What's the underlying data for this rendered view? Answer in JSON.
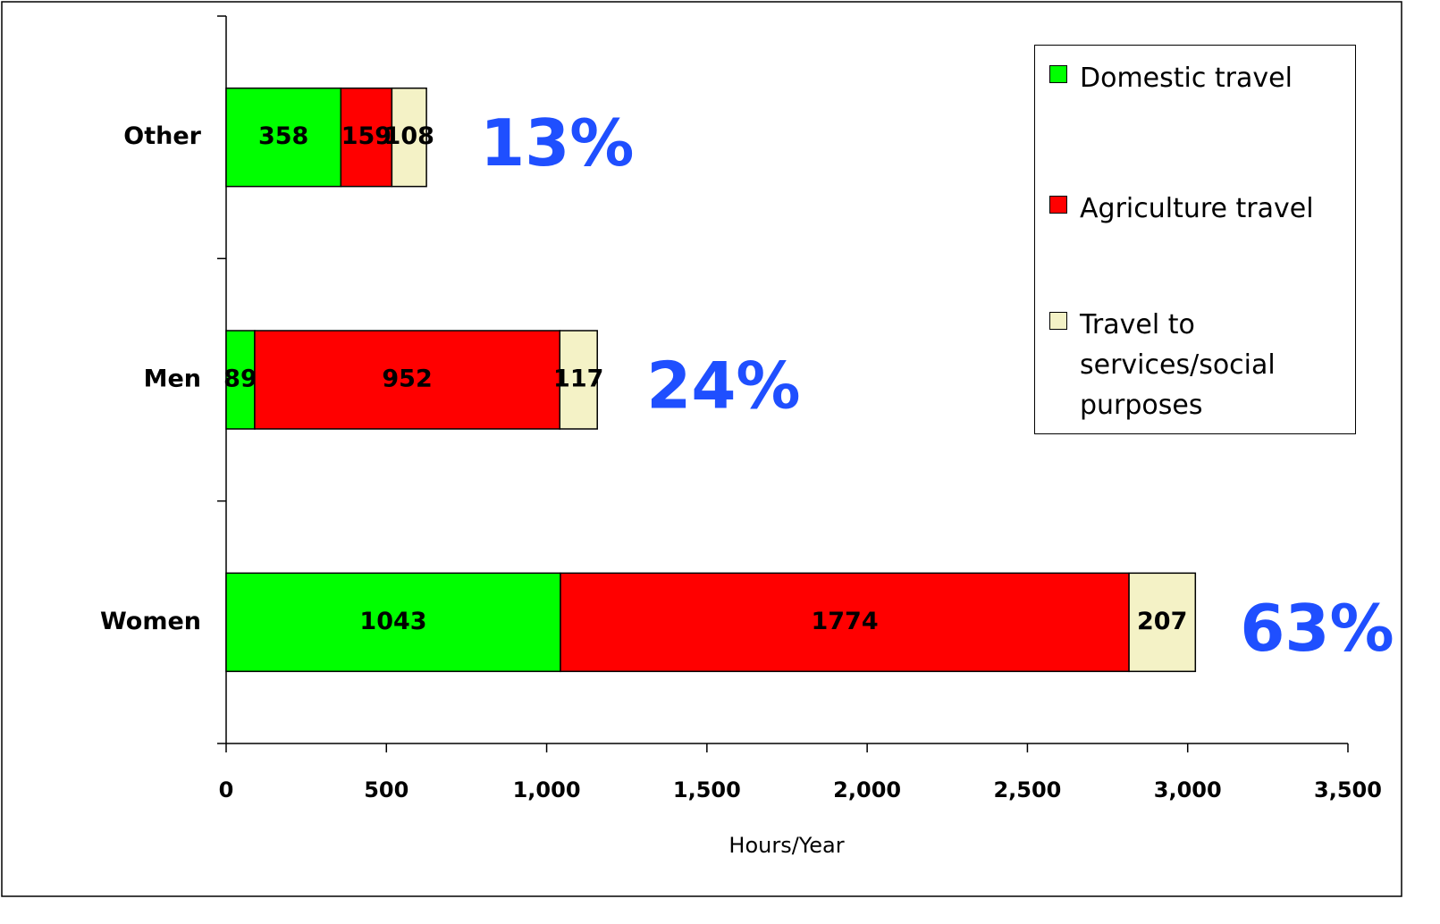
{
  "chart_data": {
    "type": "stacked-bar-horizontal",
    "categories": [
      "Other",
      "Men",
      "Women"
    ],
    "series": [
      {
        "name": "Domestic travel",
        "color": "#00ff00",
        "values": [
          358,
          89,
          1043
        ]
      },
      {
        "name": "Agriculture travel",
        "color": "#ff0000",
        "values": [
          159,
          952,
          1774
        ]
      },
      {
        "name": "Travel to services/social purposes",
        "color": "#f4f2c6",
        "values": [
          108,
          117,
          207
        ]
      }
    ],
    "annotations": [
      "13%",
      "24%",
      "63%"
    ],
    "annotation_color": "#1f4fff",
    "xlabel": "Hours/Year",
    "xlim": [
      0,
      3500
    ],
    "xticks": [
      0,
      500,
      {
        "value": 1000,
        "label": "1,000"
      },
      {
        "value": 1500,
        "label": "1,500"
      },
      {
        "value": 2000,
        "label": "2,000"
      },
      {
        "value": 2500,
        "label": "2,500"
      },
      {
        "value": 3000,
        "label": "3,000"
      },
      {
        "value": 3500,
        "label": "3,500"
      }
    ],
    "legend": "upper right"
  }
}
